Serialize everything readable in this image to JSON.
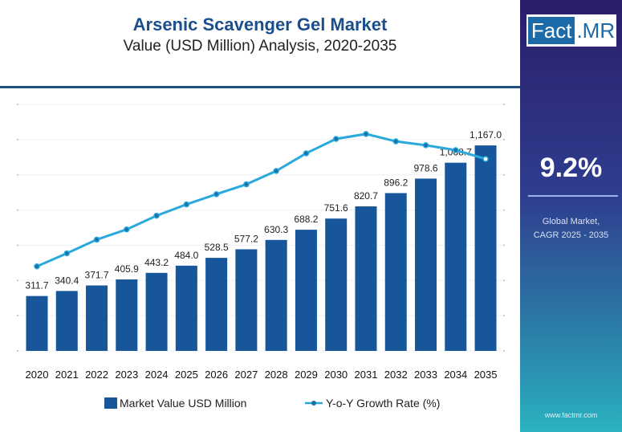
{
  "header": {
    "title": "Arsenic Scavenger Gel Market",
    "subtitle": "Value (USD Million) Analysis, 2020-2035"
  },
  "sidebar": {
    "logo_left": "Fact",
    "logo_right": ".MR",
    "cagr": "9.2%",
    "cagr_label_1": "Global Market,",
    "cagr_label_2": "CAGR 2025 - 2035",
    "url": "www.factmr.com"
  },
  "chart_data": {
    "type": "bar+line",
    "categories": [
      "2020",
      "2021",
      "2022",
      "2023",
      "2024",
      "2025",
      "2026",
      "2027",
      "2028",
      "2029",
      "2030",
      "2031",
      "2032",
      "2033",
      "2034",
      "2035"
    ],
    "series": [
      {
        "name": "Market Value USD Million",
        "type": "bar",
        "color": "#17569a",
        "values": [
          311.7,
          340.4,
          371.7,
          405.9,
          443.2,
          484.0,
          528.5,
          577.2,
          630.3,
          688.2,
          751.6,
          820.7,
          896.2,
          978.6,
          1068.7,
          1167.0
        ],
        "labels": [
          "311.7",
          "340.4",
          "371.7",
          "405.9",
          "443.2",
          "484.0",
          "528.5",
          "577.2",
          "630.3",
          "688.2",
          "751.6",
          "820.7",
          "896.2",
          "978.6",
          "1,068.7",
          "1,167.0"
        ]
      },
      {
        "name": "Y-o-Y Growth Rate (%)",
        "type": "line",
        "axis": "right-unlabeled",
        "color": "#29a9dc",
        "values": [
          2.4,
          2.77,
          3.16,
          3.45,
          3.84,
          4.16,
          4.45,
          4.73,
          5.11,
          5.61,
          6.02,
          6.16,
          5.95,
          5.84,
          5.7,
          5.45
        ]
      }
    ],
    "ylim": [
      0,
      1400
    ],
    "y2lim": [
      0,
      7
    ],
    "grid": true,
    "legend": "bottom"
  }
}
